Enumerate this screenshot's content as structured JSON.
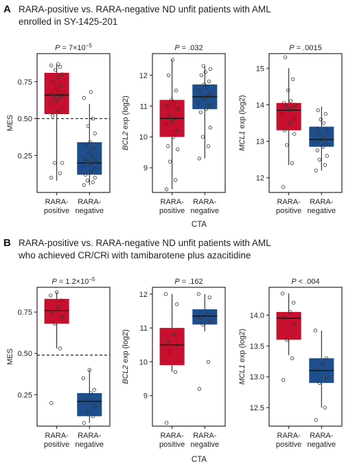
{
  "panel_a": {
    "letter": "A",
    "title_lines": [
      "RARA-positive vs. RARA-negative ND unfit patients with AML",
      "enrolled in SY-1425-201"
    ],
    "xlabel": "CTA"
  },
  "panel_b": {
    "letter": "B",
    "title_lines": [
      "RARA-positive vs. RARA-negative ND unfit patients with AML",
      "who achieved CR/CRi with tamibarotene plus azacitidine"
    ],
    "xlabel": "CTA"
  },
  "colors": {
    "positive": "#c8102e",
    "negative": "#1f4e8c"
  },
  "chart_data": [
    {
      "type": "box",
      "panel": "A",
      "ptext": "P = 7×10",
      "psup": "−5",
      "ylabel": "MES",
      "ylabel_italic": "",
      "ylabel_rest": "MES",
      "yticks": [
        0.25,
        0.5,
        0.75
      ],
      "ytick_labels": [
        "0.25",
        "0.50",
        "0.75"
      ],
      "ylim": [
        0.0,
        0.94
      ],
      "reference_line": 0.5,
      "categories": [
        "RARA-\npositive",
        "RARA-\nnegative"
      ],
      "boxes": [
        {
          "name": "RARA-positive",
          "min": 0.08,
          "q1": 0.53,
          "median": 0.66,
          "q3": 0.81,
          "max": 0.87
        },
        {
          "name": "RARA-negative",
          "min": 0.05,
          "q1": 0.12,
          "median": 0.2,
          "q3": 0.34,
          "max": 0.6
        }
      ],
      "points": [
        [
          0.1,
          0.13,
          0.2,
          0.2,
          0.52,
          0.55,
          0.57,
          0.6,
          0.62,
          0.64,
          0.65,
          0.66,
          0.67,
          0.68,
          0.7,
          0.72,
          0.75,
          0.78,
          0.8,
          0.83,
          0.85,
          0.86,
          0.87
        ],
        [
          0.05,
          0.07,
          0.08,
          0.1,
          0.12,
          0.14,
          0.16,
          0.18,
          0.19,
          0.2,
          0.21,
          0.22,
          0.23,
          0.25,
          0.27,
          0.3,
          0.32,
          0.34,
          0.4,
          0.45,
          0.5,
          0.64,
          0.68
        ]
      ]
    },
    {
      "type": "box",
      "panel": "A",
      "ptext": "P = .032",
      "psup": "",
      "ylabel": "BCL2 exp (log2)",
      "ylabel_italic": "BCL2",
      "ylabel_rest": " exp (log2)",
      "yticks": [
        9,
        10,
        11,
        12
      ],
      "ytick_labels": [
        "9",
        "10",
        "11",
        "12"
      ],
      "ylim": [
        8.2,
        12.7
      ],
      "reference_line": null,
      "categories": [
        "RARA-\npositive",
        "RARA-\nnegative"
      ],
      "boxes": [
        {
          "name": "RARA-positive",
          "min": 8.3,
          "q1": 10.0,
          "median": 10.6,
          "q3": 11.2,
          "max": 12.5
        },
        {
          "name": "RARA-negative",
          "min": 9.3,
          "q1": 10.9,
          "median": 11.3,
          "q3": 11.7,
          "max": 12.3
        }
      ],
      "points": [
        [
          8.3,
          8.6,
          9.2,
          9.6,
          9.7,
          10.0,
          10.2,
          10.4,
          10.5,
          10.6,
          10.7,
          10.9,
          11.0,
          11.1,
          11.2,
          11.5,
          12.0,
          12.5
        ],
        [
          9.3,
          9.7,
          10.0,
          10.3,
          10.8,
          10.9,
          11.0,
          11.1,
          11.2,
          11.3,
          11.3,
          11.4,
          11.5,
          11.6,
          11.7,
          11.8,
          12.0,
          12.1,
          12.2,
          12.3
        ]
      ]
    },
    {
      "type": "box",
      "panel": "A",
      "ptext": "P = .0015",
      "psup": "",
      "ylabel": "MCL1 exp (log2)",
      "ylabel_italic": "MCL1",
      "ylabel_rest": " exp (log2)",
      "yticks": [
        12,
        13,
        14,
        15
      ],
      "ytick_labels": [
        "12",
        "13",
        "14",
        "15"
      ],
      "ylim": [
        11.6,
        15.4
      ],
      "reference_line": null,
      "categories": [
        "RARA-\npositive",
        "RARA-\nnegative"
      ],
      "boxes": [
        {
          "name": "RARA-positive",
          "min": 12.35,
          "q1": 13.3,
          "median": 13.85,
          "q3": 14.05,
          "max": 15.0
        },
        {
          "name": "RARA-negative",
          "min": 12.2,
          "q1": 12.85,
          "median": 13.05,
          "q3": 13.4,
          "max": 13.95
        }
      ],
      "points": [
        [
          11.75,
          12.4,
          12.9,
          13.2,
          13.3,
          13.5,
          13.6,
          13.75,
          13.85,
          13.9,
          13.95,
          14.0,
          14.05,
          14.1,
          14.4,
          14.7,
          15.3
        ],
        [
          12.2,
          12.35,
          12.5,
          12.6,
          12.75,
          12.85,
          12.95,
          13.0,
          13.05,
          13.1,
          13.2,
          13.3,
          13.35,
          13.5,
          13.6,
          13.75,
          13.85
        ]
      ]
    },
    {
      "type": "box",
      "panel": "B",
      "ptext": "P = 1.2×10",
      "psup": "−5",
      "ylabel": "MES",
      "ylabel_italic": "",
      "ylabel_rest": "MES",
      "yticks": [
        0.25,
        0.5,
        0.75
      ],
      "ytick_labels": [
        "0.25",
        "0.50",
        "0.75"
      ],
      "ylim": [
        0.06,
        0.9
      ],
      "reference_line": 0.49,
      "categories": [
        "RARA-\npositive",
        "RARA-\nnegative"
      ],
      "boxes": [
        {
          "name": "RARA-positive",
          "min": 0.53,
          "q1": 0.68,
          "median": 0.76,
          "q3": 0.83,
          "max": 0.87
        },
        {
          "name": "RARA-negative",
          "min": 0.08,
          "q1": 0.12,
          "median": 0.21,
          "q3": 0.26,
          "max": 0.4
        }
      ],
      "points": [
        [
          0.2,
          0.53,
          0.68,
          0.72,
          0.75,
          0.78,
          0.82,
          0.85,
          0.87
        ],
        [
          0.08,
          0.12,
          0.14,
          0.18,
          0.22,
          0.26,
          0.28,
          0.35,
          0.4
        ]
      ]
    },
    {
      "type": "box",
      "panel": "B",
      "ptext": "P = .162",
      "psup": "",
      "ylabel": "BCL2 exp (log2)",
      "ylabel_italic": "BCL2",
      "ylabel_rest": " exp (log2)",
      "yticks": [
        9,
        10,
        11,
        12
      ],
      "ytick_labels": [
        "9",
        "10",
        "11",
        "12"
      ],
      "ylim": [
        8.1,
        12.2
      ],
      "reference_line": null,
      "categories": [
        "RARA-\npositive",
        "RARA-\nnegative"
      ],
      "boxes": [
        {
          "name": "RARA-positive",
          "min": 9.7,
          "q1": 9.9,
          "median": 10.5,
          "q3": 11.0,
          "max": 12.0
        },
        {
          "name": "RARA-negative",
          "min": 10.9,
          "q1": 11.1,
          "median": 11.35,
          "q3": 11.55,
          "max": 12.0
        }
      ],
      "points": [
        [
          8.2,
          9.7,
          10.3,
          10.5,
          10.6,
          10.8,
          11.7,
          12.0
        ],
        [
          9.2,
          10.0,
          11.1,
          11.2,
          11.3,
          11.4,
          11.9,
          12.0
        ]
      ]
    },
    {
      "type": "box",
      "panel": "B",
      "ptext": "P < .004",
      "psup": "",
      "ylabel": "MCL1 exp (log2)",
      "ylabel_italic": "MCL1",
      "ylabel_rest": " exp (log2)",
      "yticks": [
        12.5,
        13.0,
        13.5,
        14.0
      ],
      "ytick_labels": [
        "12.5",
        "13.0",
        "13.5",
        "14.0"
      ],
      "ylim": [
        12.2,
        14.45
      ],
      "reference_line": null,
      "categories": [
        "RARA-\npositive",
        "RARA-\nnegative"
      ],
      "boxes": [
        {
          "name": "RARA-positive",
          "min": 13.35,
          "q1": 13.6,
          "median": 13.95,
          "q3": 14.05,
          "max": 14.35
        },
        {
          "name": "RARA-negative",
          "min": 12.5,
          "q1": 12.9,
          "median": 13.1,
          "q3": 13.3,
          "max": 13.75
        }
      ],
      "points": [
        [
          12.95,
          13.3,
          13.6,
          13.85,
          13.95,
          14.05,
          14.2,
          14.35
        ],
        [
          12.3,
          12.5,
          12.9,
          13.0,
          13.1,
          13.2,
          13.3,
          13.75
        ]
      ]
    }
  ]
}
